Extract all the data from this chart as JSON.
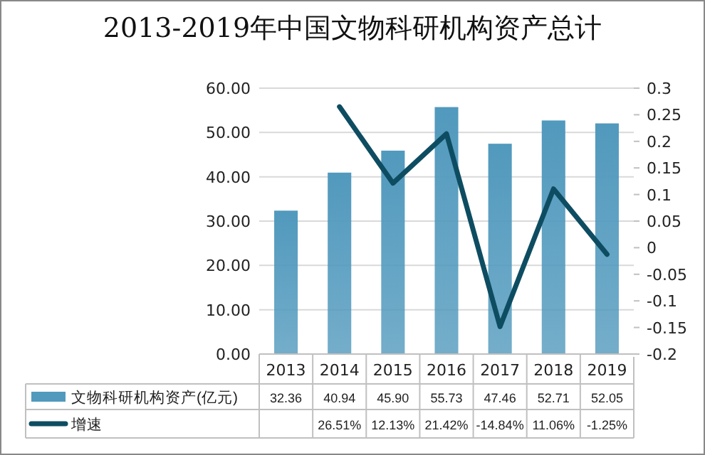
{
  "chart_data": {
    "type": "bar",
    "title": "2013-2019年中国文物科研机构资产总计",
    "categories": [
      "2013",
      "2014",
      "2015",
      "2016",
      "2017",
      "2018",
      "2019"
    ],
    "series": [
      {
        "name": "文物科研机构资产(亿元)",
        "color": "#5199bd",
        "values": [
          32.36,
          40.94,
          45.9,
          55.73,
          47.46,
          52.71,
          52.05
        ],
        "value_labels": [
          "32.36",
          "40.94",
          "45.90",
          "55.73",
          "47.46",
          "52.71",
          "52.05"
        ]
      },
      {
        "name": "增速",
        "type": "line",
        "axis": "y2",
        "color": "#0e4d61",
        "values": [
          null,
          0.2651,
          0.1213,
          0.2142,
          -0.1484,
          0.1106,
          -0.0125
        ],
        "value_labels": [
          null,
          "26.51%",
          "12.13%",
          "21.42%",
          "-14.84%",
          "11.06%",
          "-1.25%"
        ]
      }
    ],
    "ylim": [
      0,
      60
    ],
    "yticks": [
      {
        "value": 0,
        "label": "0.00"
      },
      {
        "value": 10,
        "label": "10.00"
      },
      {
        "value": 20,
        "label": "20.00"
      },
      {
        "value": 30,
        "label": "30.00"
      },
      {
        "value": 40,
        "label": "40.00"
      },
      {
        "value": 50,
        "label": "50.00"
      },
      {
        "value": 60,
        "label": "60.00"
      }
    ],
    "y2lim": [
      -0.2,
      0.3
    ],
    "y2ticks": [
      -0.2,
      -0.15,
      -0.1,
      -0.05,
      0,
      0.05,
      0.1,
      0.15,
      0.2,
      0.25,
      0.3
    ],
    "grid": "y",
    "legend": "bottom"
  }
}
